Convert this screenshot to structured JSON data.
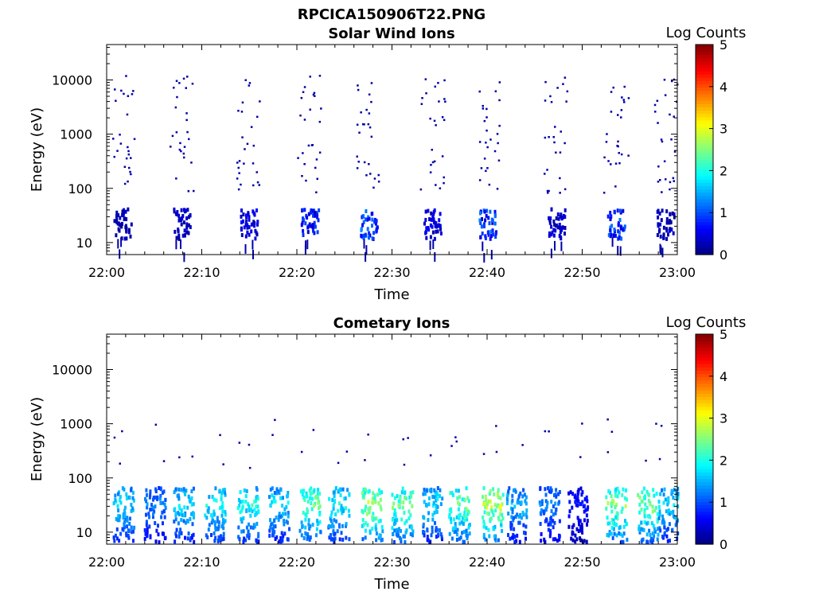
{
  "figure": {
    "title_line1": "RPCICA150906T22.PNG"
  },
  "colorbar": {
    "label": "Log Counts",
    "ticks": [
      "0",
      "1",
      "2",
      "3",
      "4",
      "5"
    ],
    "colormap": "jet"
  },
  "chart_data": [
    {
      "type": "heatmap",
      "title": "Solar Wind Ions",
      "xlabel": "Time",
      "ylabel": "Energy (eV)",
      "x_ticks": [
        "22:00",
        "22:10",
        "22:20",
        "22:30",
        "22:40",
        "22:50",
        "23:00"
      ],
      "x_range": [
        "22:00",
        "23:00"
      ],
      "y_ticks": [
        "10",
        "100",
        "1000",
        "10000"
      ],
      "y_scale": "log",
      "y_range_eV": [
        6,
        45000
      ],
      "z_label": "Log Counts",
      "z_range": [
        0,
        5
      ],
      "bursts": [
        {
          "minute": 1.6,
          "low_e_level": 0.4
        },
        {
          "minute": 7.8,
          "low_e_level": 0.5
        },
        {
          "minute": 14.9,
          "low_e_level": 0.7
        },
        {
          "minute": 21.3,
          "low_e_level": 1.0
        },
        {
          "minute": 27.5,
          "low_e_level": 1.4
        },
        {
          "minute": 34.2,
          "low_e_level": 0.7
        },
        {
          "minute": 40.0,
          "low_e_level": 1.3
        },
        {
          "minute": 47.2,
          "low_e_level": 0.5
        },
        {
          "minute": 53.5,
          "low_e_level": 1.3
        },
        {
          "minute": 58.7,
          "low_e_level": 0.4
        }
      ]
    },
    {
      "type": "heatmap",
      "title": "Cometary Ions",
      "xlabel": "Time",
      "ylabel": "Energy (eV)",
      "x_ticks": [
        "22:00",
        "22:10",
        "22:20",
        "22:30",
        "22:40",
        "22:50",
        "23:00"
      ],
      "x_range": [
        "22:00",
        "23:00"
      ],
      "y_ticks": [
        "10",
        "100",
        "1000",
        "10000"
      ],
      "y_scale": "log",
      "y_range_eV": [
        6,
        45000
      ],
      "z_label": "Log Counts",
      "z_range": [
        0,
        5
      ],
      "bursts": [
        {
          "minute": 1.7,
          "peak_level": 2.0
        },
        {
          "minute": 5.0,
          "peak_level": 1.5
        },
        {
          "minute": 8.0,
          "peak_level": 2.0
        },
        {
          "minute": 11.3,
          "peak_level": 2.2
        },
        {
          "minute": 14.8,
          "peak_level": 2.3
        },
        {
          "minute": 18.0,
          "peak_level": 2.0
        },
        {
          "minute": 21.3,
          "peak_level": 2.8
        },
        {
          "minute": 24.3,
          "peak_level": 2.2
        },
        {
          "minute": 27.8,
          "peak_level": 3.1
        },
        {
          "minute": 31.0,
          "peak_level": 2.8
        },
        {
          "minute": 34.2,
          "peak_level": 2.0
        },
        {
          "minute": 37.0,
          "peak_level": 2.8
        },
        {
          "minute": 40.5,
          "peak_level": 3.2
        },
        {
          "minute": 43.0,
          "peak_level": 1.8
        },
        {
          "minute": 46.5,
          "peak_level": 1.5
        },
        {
          "minute": 49.5,
          "peak_level": 0.8
        },
        {
          "minute": 53.5,
          "peak_level": 3.0
        },
        {
          "minute": 56.8,
          "peak_level": 2.9
        },
        {
          "minute": 59.0,
          "peak_level": 2.0
        }
      ]
    }
  ]
}
